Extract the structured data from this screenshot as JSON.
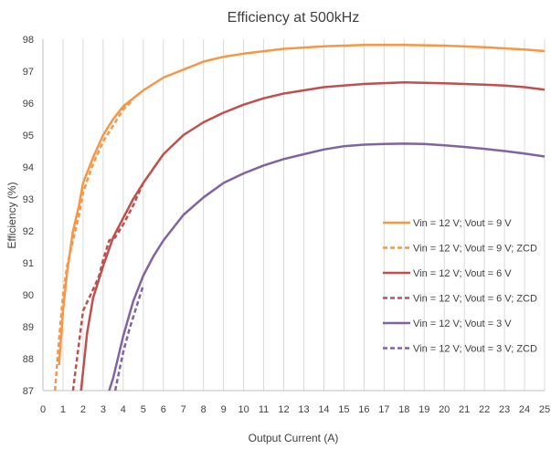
{
  "chart_data": {
    "type": "line",
    "title": "Efficiency at 500kHz",
    "xlabel": "Output Current (A)",
    "ylabel": "Efficiency (%)",
    "xlim": [
      0,
      25
    ],
    "ylim": [
      87,
      98
    ],
    "xticks": [
      "0",
      "1",
      "2",
      "3",
      "4",
      "5",
      "6",
      "7",
      "8",
      "9",
      "10",
      "11",
      "12",
      "13",
      "14",
      "15",
      "16",
      "17",
      "18",
      "19",
      "20",
      "21",
      "22",
      "23",
      "24",
      "25"
    ],
    "yticks": [
      "87",
      "88",
      "89",
      "90",
      "91",
      "92",
      "93",
      "94",
      "95",
      "96",
      "97",
      "98"
    ],
    "grid": "vertical",
    "legend_position": "right",
    "series": [
      {
        "name": "Vin = 12 V; Vout = 9 V",
        "color": "#f79646",
        "dash": "solid",
        "x": [
          0.8,
          1.0,
          1.2,
          1.5,
          1.8,
          2.0,
          2.5,
          3.0,
          3.5,
          4.0,
          5.0,
          6.0,
          7.0,
          8.0,
          9.0,
          10.0,
          12.0,
          14.0,
          16.0,
          18.0,
          20.0,
          22.0,
          24.0,
          25.0
        ],
        "y": [
          87.8,
          89.5,
          90.7,
          92.0,
          92.8,
          93.5,
          94.3,
          95.0,
          95.5,
          95.9,
          96.4,
          96.8,
          97.05,
          97.3,
          97.45,
          97.55,
          97.7,
          97.78,
          97.82,
          97.82,
          97.8,
          97.75,
          97.68,
          97.63
        ]
      },
      {
        "name": "Vin = 12 V; Vout = 9 V; ZCD",
        "color": "#f79646",
        "dash": "dashed",
        "x": [
          0.6,
          0.8,
          1.0,
          1.2,
          1.5,
          1.8,
          2.0,
          2.5,
          3.0,
          3.5,
          4.0,
          4.5
        ],
        "y": [
          87.0,
          88.6,
          90.0,
          90.9,
          91.7,
          92.5,
          93.2,
          94.1,
          94.8,
          95.3,
          95.8,
          96.1
        ]
      },
      {
        "name": "Vin = 12 V; Vout = 6 V",
        "color": "#c0504d",
        "dash": "solid",
        "x": [
          1.9,
          2.2,
          2.5,
          2.8,
          3.0,
          3.5,
          4.0,
          4.5,
          5.0,
          6.0,
          7.0,
          8.0,
          9.0,
          10.0,
          11.0,
          12.0,
          13.0,
          14.0,
          16.0,
          18.0,
          20.0,
          22.0,
          23.0,
          24.0,
          25.0
        ],
        "y": [
          87.0,
          88.8,
          89.9,
          90.5,
          90.9,
          91.8,
          92.4,
          93.0,
          93.5,
          94.4,
          95.0,
          95.4,
          95.7,
          95.95,
          96.15,
          96.3,
          96.4,
          96.5,
          96.6,
          96.65,
          96.62,
          96.58,
          96.55,
          96.5,
          96.42
        ]
      },
      {
        "name": "Vin = 12 V; Vout = 6 V; ZCD",
        "color": "#c0504d",
        "dash": "dashed",
        "x": [
          1.5,
          1.8,
          2.0,
          2.3,
          2.6,
          2.8,
          3.0,
          3.3,
          3.6,
          4.0,
          4.5,
          5.0
        ],
        "y": [
          87.0,
          88.5,
          89.5,
          89.9,
          90.3,
          90.6,
          91.1,
          91.7,
          91.8,
          92.2,
          92.8,
          93.5
        ]
      },
      {
        "name": "Vin = 12 V; Vout = 3 V",
        "color": "#8064a2",
        "dash": "solid",
        "x": [
          3.3,
          3.5,
          4.0,
          4.5,
          5.0,
          5.5,
          6.0,
          7.0,
          8.0,
          9.0,
          10.0,
          11.0,
          12.0,
          13.0,
          14.0,
          15.0,
          16.0,
          17.0,
          18.0,
          19.0,
          20.0,
          21.0,
          22.0,
          23.0,
          24.0,
          25.0
        ],
        "y": [
          87.0,
          87.4,
          88.7,
          89.8,
          90.6,
          91.2,
          91.7,
          92.5,
          93.05,
          93.5,
          93.8,
          94.05,
          94.25,
          94.4,
          94.55,
          94.65,
          94.7,
          94.72,
          94.73,
          94.72,
          94.68,
          94.63,
          94.57,
          94.5,
          94.42,
          94.33
        ]
      },
      {
        "name": "Vin = 12 V; Vout = 3 V; ZCD",
        "color": "#8064a2",
        "dash": "dashed",
        "x": [
          3.6,
          3.8,
          4.0,
          4.3,
          4.6,
          5.0
        ],
        "y": [
          87.0,
          87.6,
          88.2,
          88.9,
          89.5,
          90.3
        ]
      }
    ]
  }
}
